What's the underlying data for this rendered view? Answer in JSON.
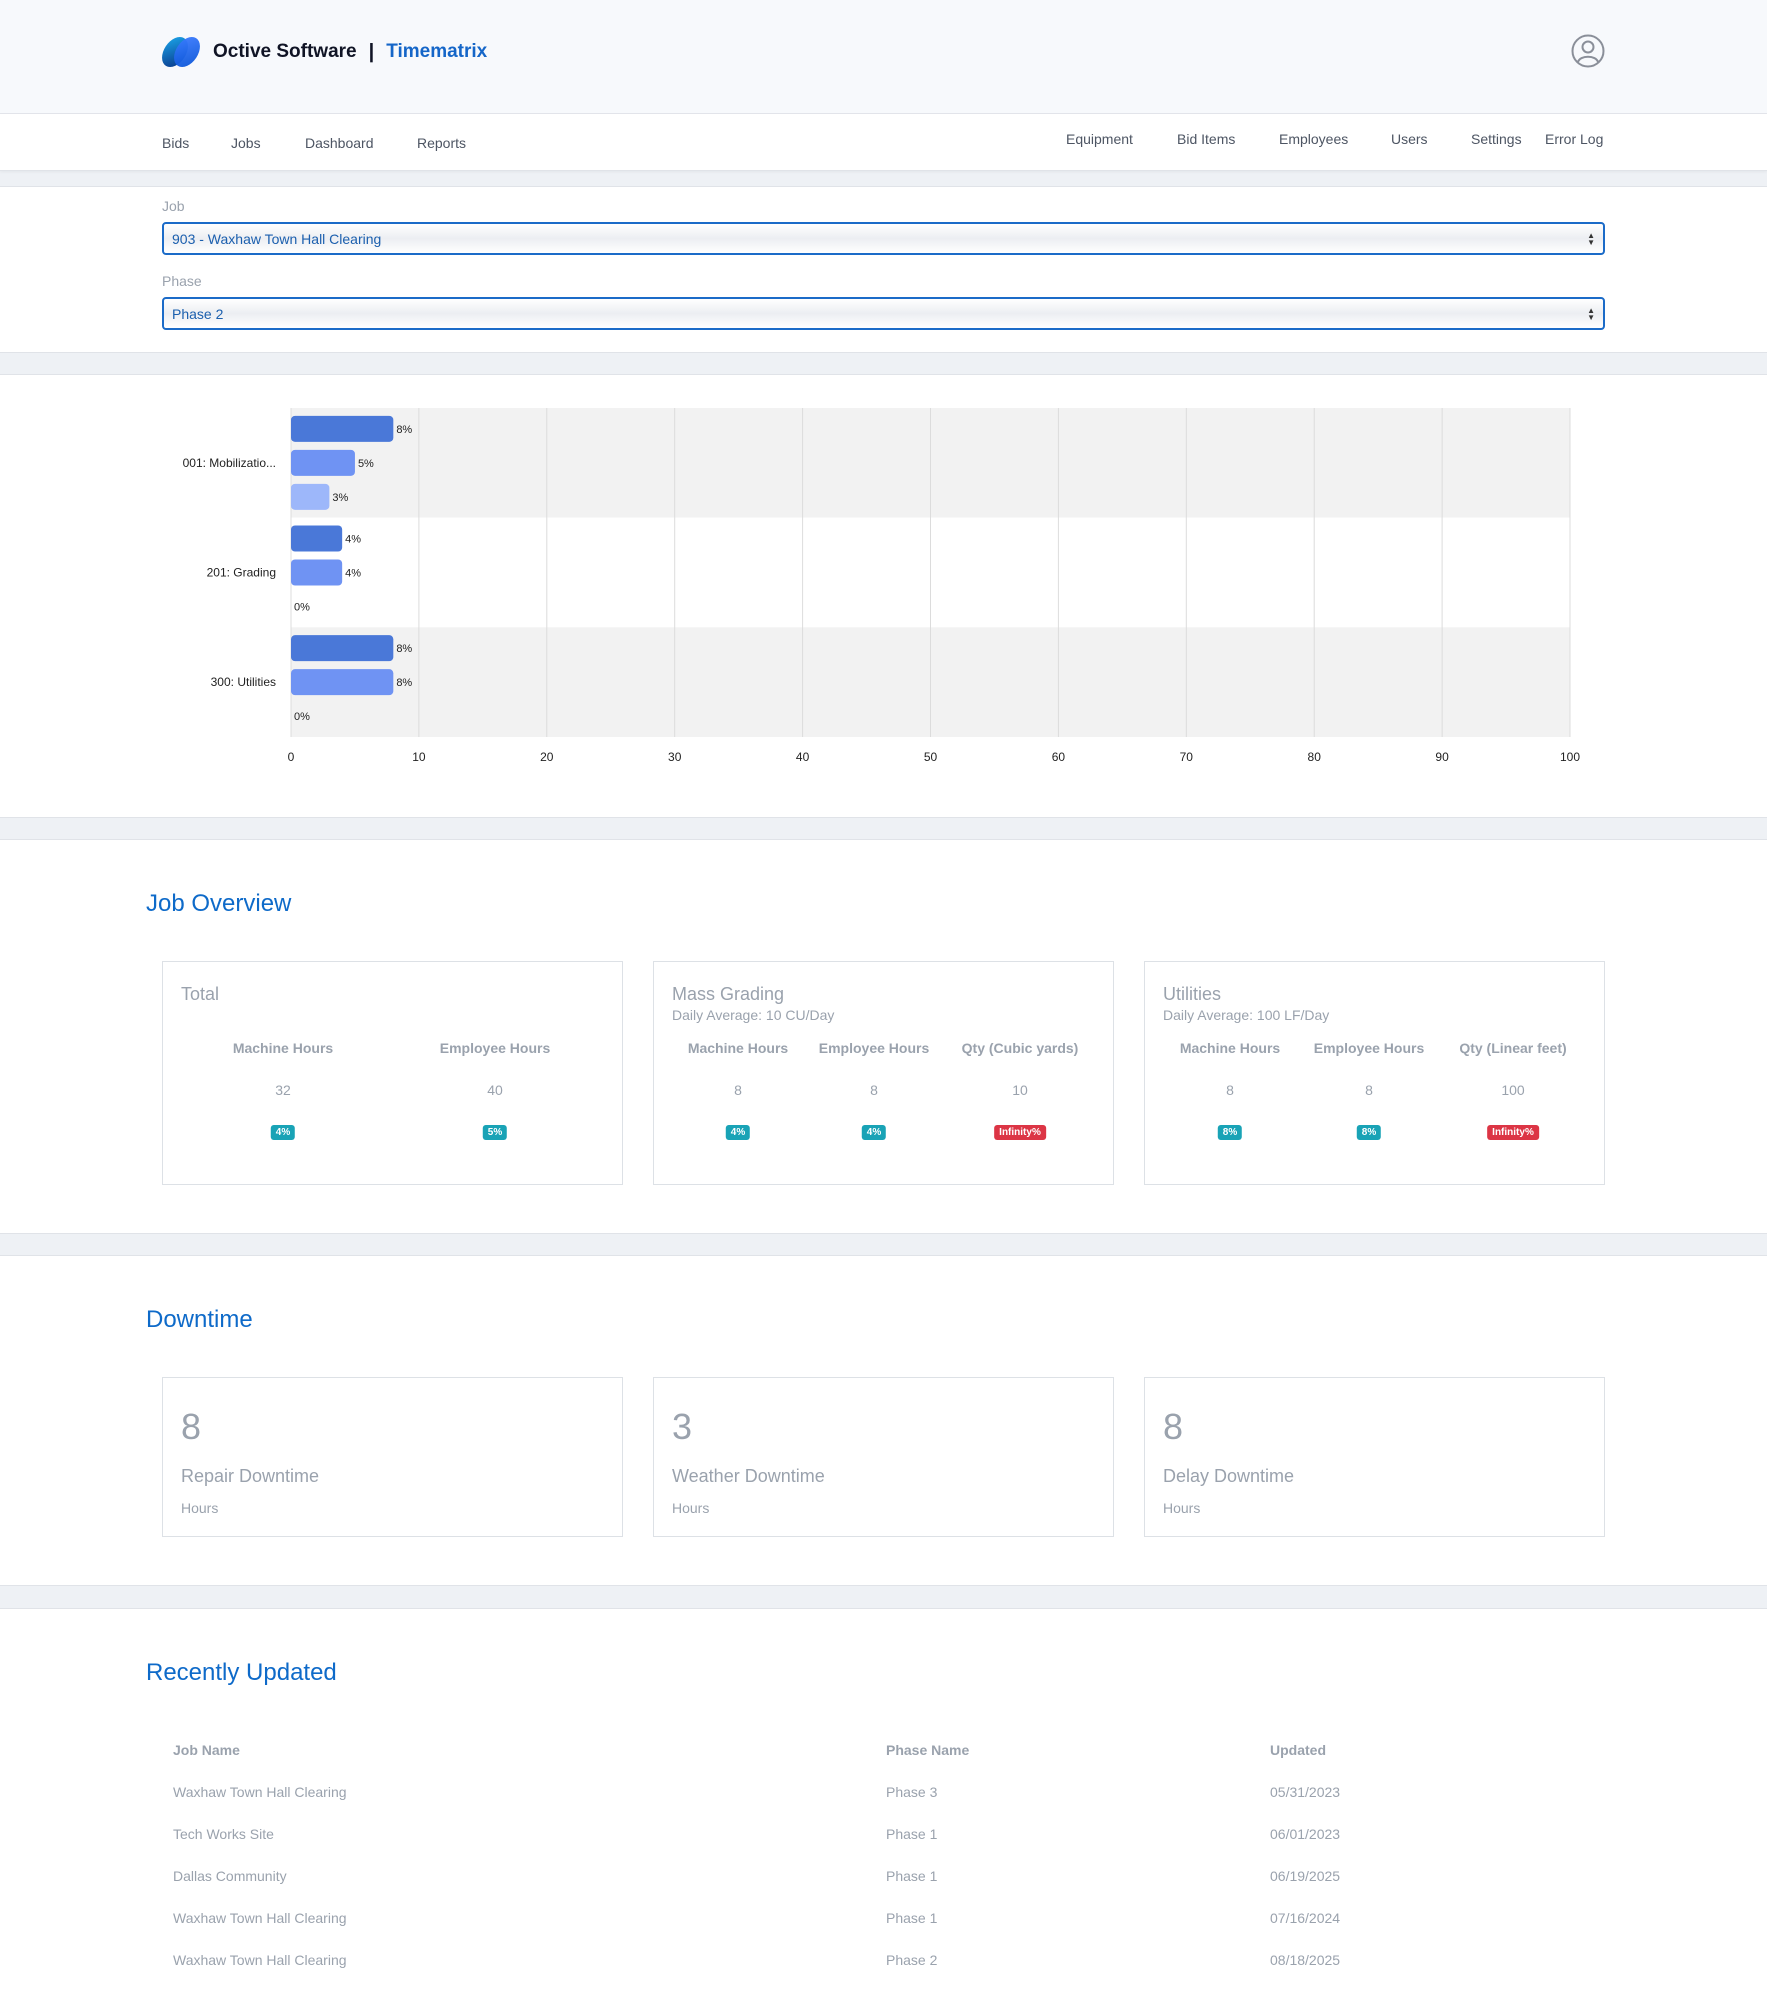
{
  "header": {
    "brand_name": "Octive Software",
    "brand_separator": "|",
    "product_name": "Timematrix",
    "icons": {
      "logo": "octive-logo",
      "user": "user-circle-icon"
    }
  },
  "nav": {
    "left": [
      "Bids",
      "Jobs",
      "Dashboard",
      "Reports"
    ],
    "right": [
      "Equipment",
      "Bid Items",
      "Employees",
      "Users",
      "Settings",
      "Error Log"
    ]
  },
  "filters": {
    "job_label": "Job",
    "job_value": "903 - Waxhaw Town Hall Clearing",
    "phase_label": "Phase",
    "phase_value": "Phase 2"
  },
  "chart_data": {
    "type": "bar",
    "orientation": "horizontal",
    "categories": [
      "001: Mobilizatio...",
      "201: Grading",
      "300: Utilities"
    ],
    "series": [
      {
        "values": [
          8,
          4,
          8
        ],
        "labels": [
          "8%",
          "4%",
          "8%"
        ],
        "color": "#4a78d8"
      },
      {
        "values": [
          5,
          4,
          8
        ],
        "labels": [
          "5%",
          "4%",
          "8%"
        ],
        "color": "#6f93f3"
      },
      {
        "values": [
          3,
          0,
          0
        ],
        "labels": [
          "3%",
          "0%",
          "0%"
        ],
        "color": "#9db7fa"
      }
    ],
    "xlim": [
      0,
      100
    ],
    "xticks": [
      "0",
      "10",
      "20",
      "30",
      "40",
      "50",
      "60",
      "70",
      "80",
      "90",
      "100"
    ],
    "grid": true,
    "legend": false
  },
  "overview": {
    "title": "Job Overview",
    "cards": [
      {
        "title": "Total",
        "subtitle": "",
        "columns": [
          {
            "head": "Machine Hours",
            "value": "32",
            "badge": "4%",
            "badge_color": "teal"
          },
          {
            "head": "Employee Hours",
            "value": "40",
            "badge": "5%",
            "badge_color": "teal"
          }
        ]
      },
      {
        "title": "Mass Grading",
        "subtitle": "Daily Average: 10 CU/Day",
        "columns": [
          {
            "head": "Machine Hours",
            "value": "8",
            "badge": "4%",
            "badge_color": "teal"
          },
          {
            "head": "Employee Hours",
            "value": "8",
            "badge": "4%",
            "badge_color": "teal"
          },
          {
            "head": "Qty (Cubic yards)",
            "value": "10",
            "badge": "Infinity%",
            "badge_color": "red"
          }
        ]
      },
      {
        "title": "Utilities",
        "subtitle": "Daily Average: 100 LF/Day",
        "columns": [
          {
            "head": "Machine Hours",
            "value": "8",
            "badge": "8%",
            "badge_color": "teal"
          },
          {
            "head": "Employee Hours",
            "value": "8",
            "badge": "8%",
            "badge_color": "teal"
          },
          {
            "head": "Qty (Linear feet)",
            "value": "100",
            "badge": "Infinity%",
            "badge_color": "red"
          }
        ]
      }
    ]
  },
  "downtime": {
    "title": "Downtime",
    "cards": [
      {
        "value": "8",
        "label": "Repair Downtime",
        "unit": "Hours"
      },
      {
        "value": "3",
        "label": "Weather Downtime",
        "unit": "Hours"
      },
      {
        "value": "8",
        "label": "Delay Downtime",
        "unit": "Hours"
      }
    ]
  },
  "recent": {
    "title": "Recently Updated",
    "headers": [
      "Job Name",
      "Phase Name",
      "Updated"
    ],
    "rows": [
      [
        "Waxhaw Town Hall Clearing",
        "Phase 3",
        "05/31/2023"
      ],
      [
        "Tech Works Site",
        "Phase 1",
        "06/01/2023"
      ],
      [
        "Dallas Community",
        "Phase 1",
        "06/19/2025"
      ],
      [
        "Waxhaw Town Hall Clearing",
        "Phase 1",
        "07/16/2024"
      ],
      [
        "Waxhaw Town Hall Clearing",
        "Phase 2",
        "08/18/2025"
      ]
    ]
  },
  "colors": {
    "accent": "#0e6ac9",
    "badge_teal": "#19a3b6",
    "badge_red": "#dc3545"
  }
}
